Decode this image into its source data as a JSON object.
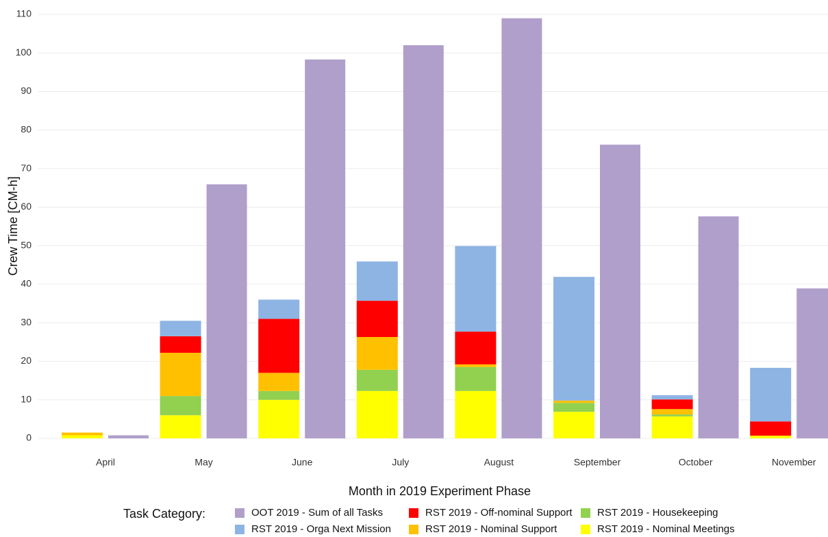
{
  "chart_data": {
    "type": "bar",
    "x_label": "Month in 2019 Experiment Phase",
    "y_label": "Crew Time [CM-h]",
    "legend_title": "Task Category:",
    "categories": [
      "April",
      "May",
      "June",
      "July",
      "August",
      "September",
      "October",
      "November"
    ],
    "series": [
      {
        "name": "OOT 2019 - Sum of all Tasks",
        "color": "#b09fca",
        "values": [
          0.8,
          65.9,
          98.3,
          102,
          109,
          76.2,
          57.6,
          38.9
        ]
      },
      {
        "name": "RST 2019 - Orga Next Mission",
        "color": "#8eb4e3",
        "values": [
          0,
          4,
          5,
          10.2,
          22.2,
          32.1,
          1.1,
          13.9
        ]
      },
      {
        "name": "RST 2019 - Off-nominal Support",
        "color": "#ff0000",
        "values": [
          0,
          4.3,
          14,
          9.4,
          8.5,
          0,
          2.5,
          3.7
        ]
      },
      {
        "name": "RST 2019 - Nominal Support",
        "color": "#ffc000",
        "values": [
          0.7,
          11.2,
          4.7,
          8.5,
          0.7,
          0.6,
          1.4,
          0
        ]
      },
      {
        "name": "RST 2019 - Housekeeping",
        "color": "#92d050",
        "values": [
          0,
          5,
          2.3,
          5.5,
          6.2,
          2.3,
          0.5,
          0
        ]
      },
      {
        "name": "RST 2019 - Nominal Meetings",
        "color": "#ffff00",
        "values": [
          0.8,
          6,
          10,
          12.3,
          12.3,
          6.9,
          5.7,
          0.7
        ]
      }
    ],
    "ylim": [
      0,
      110
    ],
    "yticks": [
      0,
      10,
      20,
      30,
      40,
      50,
      60,
      70,
      80,
      90,
      100,
      110
    ],
    "grid": true
  }
}
